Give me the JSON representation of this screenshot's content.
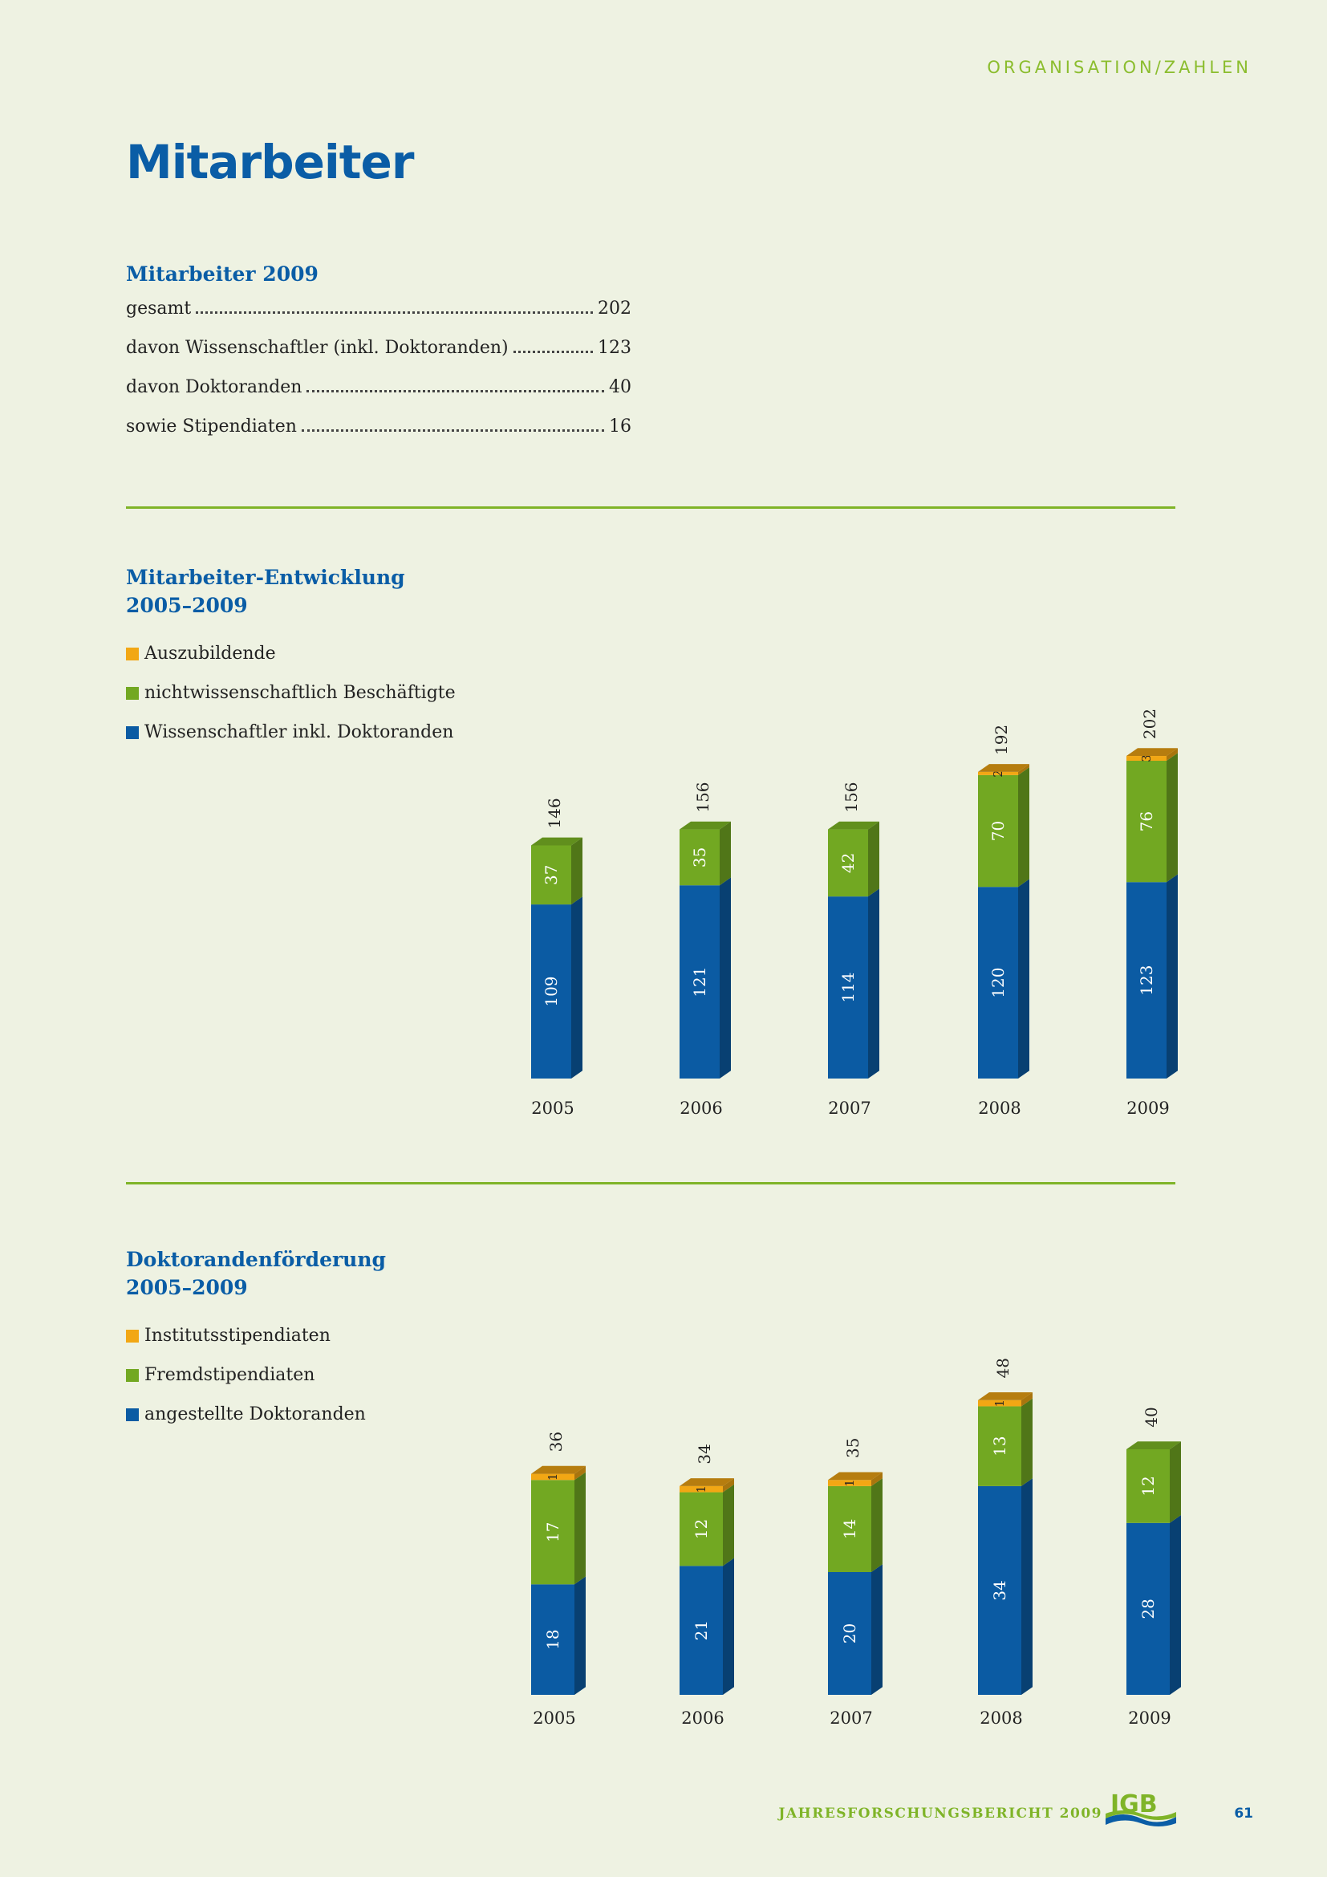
{
  "header": {
    "section": "ORGANISATION/ZAHLEN",
    "title": "Mitarbeiter"
  },
  "stats": {
    "title": "Mitarbeiter 2009",
    "rows": [
      {
        "label": "gesamt",
        "value": "202"
      },
      {
        "label": "davon Wissenschaftler (inkl. Doktoranden)",
        "value": "123"
      },
      {
        "label": "davon Doktoranden",
        "value": "40"
      },
      {
        "label": "sowie Stipendiaten",
        "value": "16"
      }
    ]
  },
  "colors": {
    "blue": "#0b5ba3",
    "green": "#72a822",
    "orange": "#f2a714",
    "accent": "#0a5da6",
    "rule": "#7fb428"
  },
  "chart_data": [
    {
      "type": "bar",
      "stacked": true,
      "title_line1": "Mitarbeiter-Entwicklung",
      "title_line2": "2005–2009",
      "categories": [
        "2005",
        "2006",
        "2007",
        "2008",
        "2009"
      ],
      "series": [
        {
          "name": "Auszubildende",
          "color": "#f2a714",
          "values": [
            0,
            0,
            0,
            2,
            3
          ]
        },
        {
          "name": "nichtwissenschaftlich Beschäftigte",
          "color": "#72a822",
          "values": [
            37,
            35,
            42,
            70,
            76
          ]
        },
        {
          "name": "Wissenschaftler inkl. Doktoranden",
          "color": "#0b5ba3",
          "values": [
            109,
            121,
            114,
            120,
            123
          ]
        }
      ],
      "totals": [
        146,
        156,
        156,
        192,
        202
      ],
      "legend_position": "top-left",
      "grid": false
    },
    {
      "type": "bar",
      "stacked": true,
      "title_line1": "Doktorandenförderung",
      "title_line2": "2005–2009",
      "categories": [
        "2005",
        "2006",
        "2007",
        "2008",
        "2009"
      ],
      "series": [
        {
          "name": "Institutsstipendiaten",
          "color": "#f2a714",
          "values": [
            1,
            1,
            1,
            1,
            0
          ]
        },
        {
          "name": "Fremdstipendiaten",
          "color": "#72a822",
          "values": [
            17,
            12,
            14,
            13,
            12
          ]
        },
        {
          "name": "angestellte Doktoranden",
          "color": "#0b5ba3",
          "values": [
            18,
            21,
            20,
            34,
            28
          ]
        }
      ],
      "totals": [
        36,
        34,
        35,
        48,
        40
      ],
      "legend_position": "top-left",
      "grid": false
    }
  ],
  "footer": {
    "report": "JAHRESFORSCHUNGSBERICHT 2009",
    "logo_text": "IGB",
    "page_number": "61"
  }
}
